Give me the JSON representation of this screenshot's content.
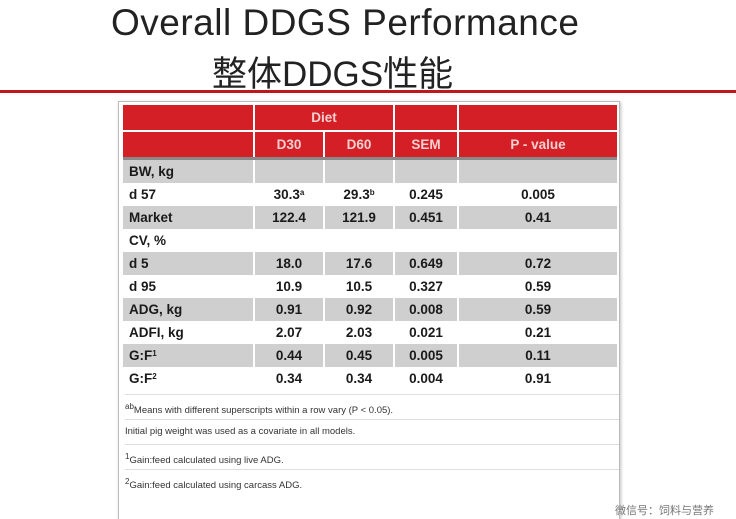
{
  "title": {
    "en": "Overall DDGS Performance",
    "cn": "整体DDGS性能"
  },
  "table": {
    "group_header": "Diet",
    "columns": [
      "D30",
      "D60",
      "SEM",
      "P - value"
    ],
    "rows": [
      {
        "label": "BW, kg",
        "d30": "",
        "d60": "",
        "sem": "",
        "p": "",
        "shade": "gray"
      },
      {
        "label": "d 57",
        "d30": "30.3",
        "d30_sup": "a",
        "d60": "29.3",
        "d60_sup": "b",
        "sem": "0.245",
        "p": "0.005",
        "shade": "white"
      },
      {
        "label": "Market",
        "d30": "122.4",
        "d60": "121.9",
        "sem": "0.451",
        "p": "0.41",
        "shade": "gray"
      },
      {
        "label": "CV, %",
        "d30": "",
        "d60": "",
        "sem": "",
        "p": "",
        "shade": "white"
      },
      {
        "label": "d 5",
        "d30": "18.0",
        "d60": "17.6",
        "sem": "0.649",
        "p": "0.72",
        "shade": "gray"
      },
      {
        "label": "d 95",
        "d30": "10.9",
        "d60": "10.5",
        "sem": "0.327",
        "p": "0.59",
        "shade": "white"
      },
      {
        "label": "ADG, kg",
        "d30": "0.91",
        "d60": "0.92",
        "sem": "0.008",
        "p": "0.59",
        "shade": "gray"
      },
      {
        "label": "ADFI, kg",
        "d30": "2.07",
        "d60": "2.03",
        "sem": "0.021",
        "p": "0.21",
        "shade": "white"
      },
      {
        "label": "G:F",
        "label_sup": "1",
        "d30": "0.44",
        "d60": "0.45",
        "sem": "0.005",
        "p": "0.11",
        "shade": "gray"
      },
      {
        "label": "G:F",
        "label_sup": "2",
        "d30": "0.34",
        "d60": "0.34",
        "sem": "0.004",
        "p": "0.91",
        "shade": "white"
      }
    ],
    "notes": [
      "abMeans with different superscripts within a row vary (P < 0.05).",
      "Initial pig weight was used as a covariate in all models.",
      "1Gain:feed calculated using live ADG.",
      "2Gain:feed calculated using carcass ADG."
    ]
  },
  "watermark": "微信号：饲料与营养"
}
